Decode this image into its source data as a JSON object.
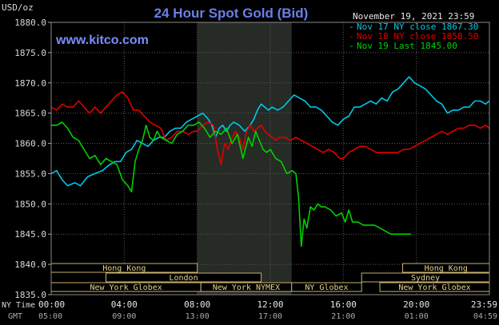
{
  "chart_data": {
    "type": "line",
    "title": "24 Hour Spot Gold (Bid)",
    "unit_label": "USD/oz",
    "watermark": "www.kitco.com",
    "date_label": "November 19, 2021 23:59",
    "ylim": [
      1835,
      1880
    ],
    "y_ticks": [
      "1880.0",
      "1875.0",
      "1870.0",
      "1865.0",
      "1860.0",
      "1855.0",
      "1850.0",
      "1845.0",
      "1840.0",
      "1835.0"
    ],
    "x_ticks": [
      "00:00",
      "04:00",
      "08:00",
      "12:00",
      "16:00",
      "20:00",
      "23:59"
    ],
    "gmt_ticks": [
      "05:00",
      "09:00",
      "13:00",
      "17:00",
      "21:00",
      "01:00",
      "04:59"
    ],
    "ny_time_label": "NY Time",
    "gmt_label": "GMT",
    "shaded_range": [
      8.0,
      13.17
    ],
    "sessions": [
      {
        "name": "Hong Kong",
        "start": 0.0,
        "end": 8.0,
        "row": 1
      },
      {
        "name": "Hong Kong",
        "start": 19.25,
        "end": 24.0,
        "row": 1
      },
      {
        "name": "London",
        "start": 3.0,
        "end": 11.5,
        "row": 2
      },
      {
        "name": "Sydney",
        "start": 17.0,
        "end": 24.0,
        "row": 2
      },
      {
        "name": "New York Globex",
        "start": 0.0,
        "end": 8.2,
        "row": 3
      },
      {
        "name": "New York NYMEX",
        "start": 8.2,
        "end": 13.17,
        "row": 3
      },
      {
        "name": "NY Globex",
        "start": 13.17,
        "end": 17.0,
        "row": 3
      },
      {
        "name": "New York Globex",
        "start": 18.0,
        "end": 24.0,
        "row": 3
      }
    ],
    "series": [
      {
        "name": "Nov 17 NY close",
        "last": "1867.30",
        "color": "#00c8e8",
        "points": [
          [
            0,
            1855
          ],
          [
            0.3,
            1855.5
          ],
          [
            0.6,
            1854
          ],
          [
            0.9,
            1853
          ],
          [
            1.3,
            1853.5
          ],
          [
            1.6,
            1853
          ],
          [
            2.0,
            1854.5
          ],
          [
            2.4,
            1855
          ],
          [
            2.8,
            1855.5
          ],
          [
            3.2,
            1856.5
          ],
          [
            3.5,
            1857
          ],
          [
            3.8,
            1857
          ],
          [
            4.1,
            1858.5
          ],
          [
            4.4,
            1859
          ],
          [
            4.7,
            1860.5
          ],
          [
            5.0,
            1860
          ],
          [
            5.3,
            1859.5
          ],
          [
            5.6,
            1860.5
          ],
          [
            5.9,
            1861
          ],
          [
            6.2,
            1861
          ],
          [
            6.5,
            1862
          ],
          [
            6.8,
            1862.5
          ],
          [
            7.1,
            1862.5
          ],
          [
            7.4,
            1863.5
          ],
          [
            7.7,
            1864
          ],
          [
            8.0,
            1864.5
          ],
          [
            8.3,
            1865
          ],
          [
            8.6,
            1864
          ],
          [
            8.8,
            1863
          ],
          [
            9.0,
            1861
          ],
          [
            9.2,
            1862.5
          ],
          [
            9.4,
            1863
          ],
          [
            9.6,
            1862
          ],
          [
            9.8,
            1863
          ],
          [
            10.0,
            1863.5
          ],
          [
            10.3,
            1863
          ],
          [
            10.6,
            1862
          ],
          [
            10.9,
            1863
          ],
          [
            11.1,
            1864
          ],
          [
            11.3,
            1865.5
          ],
          [
            11.5,
            1866.5
          ],
          [
            11.7,
            1866
          ],
          [
            11.9,
            1865.5
          ],
          [
            12.1,
            1866
          ],
          [
            12.4,
            1865.5
          ],
          [
            12.7,
            1866
          ],
          [
            13.0,
            1867
          ],
          [
            13.3,
            1868
          ],
          [
            13.6,
            1867.5
          ],
          [
            13.9,
            1867
          ],
          [
            14.2,
            1866
          ],
          [
            14.5,
            1866
          ],
          [
            14.8,
            1865.5
          ],
          [
            15.1,
            1864.5
          ],
          [
            15.4,
            1863.5
          ],
          [
            15.7,
            1863
          ],
          [
            16.0,
            1864
          ],
          [
            16.3,
            1864.5
          ],
          [
            16.6,
            1866
          ],
          [
            16.9,
            1866
          ],
          [
            17.2,
            1866.5
          ],
          [
            17.5,
            1867
          ],
          [
            17.8,
            1866.5
          ],
          [
            18.1,
            1867.5
          ],
          [
            18.4,
            1867
          ],
          [
            18.7,
            1868.5
          ],
          [
            19.0,
            1869
          ],
          [
            19.3,
            1870
          ],
          [
            19.6,
            1871
          ],
          [
            19.9,
            1870
          ],
          [
            20.2,
            1869.5
          ],
          [
            20.5,
            1869
          ],
          [
            20.8,
            1868
          ],
          [
            21.1,
            1867
          ],
          [
            21.4,
            1866.5
          ],
          [
            21.7,
            1865
          ],
          [
            22.0,
            1865.5
          ],
          [
            22.3,
            1865.5
          ],
          [
            22.6,
            1866
          ],
          [
            22.9,
            1866
          ],
          [
            23.2,
            1867
          ],
          [
            23.5,
            1867
          ],
          [
            23.8,
            1866.5
          ],
          [
            23.98,
            1867
          ]
        ]
      },
      {
        "name": "Nov 18 NY close",
        "last": "1858.50",
        "color": "#e00000",
        "points": [
          [
            0,
            1866
          ],
          [
            0.3,
            1865.5
          ],
          [
            0.6,
            1866.5
          ],
          [
            0.9,
            1866
          ],
          [
            1.2,
            1866
          ],
          [
            1.5,
            1867
          ],
          [
            1.8,
            1866
          ],
          [
            2.1,
            1865
          ],
          [
            2.4,
            1866
          ],
          [
            2.7,
            1865
          ],
          [
            3.0,
            1866
          ],
          [
            3.3,
            1867
          ],
          [
            3.6,
            1868
          ],
          [
            3.9,
            1868.5
          ],
          [
            4.2,
            1867.5
          ],
          [
            4.5,
            1865.5
          ],
          [
            4.8,
            1865.5
          ],
          [
            5.1,
            1864.5
          ],
          [
            5.4,
            1863.5
          ],
          [
            5.7,
            1863
          ],
          [
            6.0,
            1862.5
          ],
          [
            6.3,
            1860.5
          ],
          [
            6.6,
            1861
          ],
          [
            6.9,
            1862
          ],
          [
            7.2,
            1862
          ],
          [
            7.5,
            1861.5
          ],
          [
            7.8,
            1862
          ],
          [
            8.0,
            1862
          ],
          [
            8.3,
            1863
          ],
          [
            8.6,
            1863.5
          ],
          [
            8.9,
            1863
          ],
          [
            9.1,
            1859
          ],
          [
            9.3,
            1856.5
          ],
          [
            9.5,
            1860
          ],
          [
            9.7,
            1859
          ],
          [
            9.9,
            1861
          ],
          [
            10.1,
            1862
          ],
          [
            10.3,
            1861
          ],
          [
            10.5,
            1859
          ],
          [
            10.7,
            1862
          ],
          [
            10.9,
            1863
          ],
          [
            11.1,
            1862
          ],
          [
            11.3,
            1862.5
          ],
          [
            11.5,
            1863
          ],
          [
            11.7,
            1862
          ],
          [
            11.9,
            1861.5
          ],
          [
            12.1,
            1861
          ],
          [
            12.3,
            1860.5
          ],
          [
            12.5,
            1861
          ],
          [
            12.8,
            1861
          ],
          [
            13.1,
            1860.5
          ],
          [
            13.4,
            1861
          ],
          [
            13.7,
            1860.5
          ],
          [
            14.0,
            1860
          ],
          [
            14.3,
            1859.5
          ],
          [
            14.6,
            1859
          ],
          [
            14.9,
            1858.5
          ],
          [
            15.2,
            1859
          ],
          [
            15.5,
            1858.5
          ],
          [
            15.8,
            1857.5
          ],
          [
            16.0,
            1857.5
          ],
          [
            16.3,
            1858.5
          ],
          [
            16.6,
            1859
          ],
          [
            16.9,
            1859.5
          ],
          [
            17.2,
            1859.5
          ],
          [
            17.5,
            1859
          ],
          [
            17.8,
            1858.5
          ],
          [
            18.1,
            1858.5
          ],
          [
            18.4,
            1858.5
          ],
          [
            18.7,
            1858.5
          ],
          [
            19.0,
            1858.5
          ],
          [
            19.3,
            1859
          ],
          [
            19.6,
            1859
          ],
          [
            19.9,
            1859.5
          ],
          [
            20.2,
            1860
          ],
          [
            20.5,
            1860.5
          ],
          [
            20.8,
            1861
          ],
          [
            21.1,
            1861.5
          ],
          [
            21.4,
            1862
          ],
          [
            21.7,
            1861.5
          ],
          [
            22.0,
            1862
          ],
          [
            22.3,
            1862.5
          ],
          [
            22.6,
            1862.5
          ],
          [
            22.9,
            1863
          ],
          [
            23.2,
            1863
          ],
          [
            23.5,
            1862.5
          ],
          [
            23.8,
            1863
          ],
          [
            23.98,
            1862.5
          ]
        ]
      },
      {
        "name": "Nov 19 Last",
        "last": "1845.00",
        "color": "#00d000",
        "points": [
          [
            0,
            1863
          ],
          [
            0.3,
            1863
          ],
          [
            0.6,
            1863.5
          ],
          [
            0.9,
            1862.5
          ],
          [
            1.2,
            1861
          ],
          [
            1.5,
            1860.5
          ],
          [
            1.8,
            1859
          ],
          [
            2.1,
            1857.5
          ],
          [
            2.4,
            1858
          ],
          [
            2.7,
            1856.5
          ],
          [
            3.0,
            1857.5
          ],
          [
            3.3,
            1857
          ],
          [
            3.6,
            1856.5
          ],
          [
            3.9,
            1854
          ],
          [
            4.2,
            1853
          ],
          [
            4.4,
            1852
          ],
          [
            4.6,
            1857
          ],
          [
            4.8,
            1859
          ],
          [
            5.0,
            1860.5
          ],
          [
            5.2,
            1863
          ],
          [
            5.4,
            1861
          ],
          [
            5.6,
            1860.5
          ],
          [
            5.8,
            1862
          ],
          [
            6.0,
            1861
          ],
          [
            6.3,
            1860.5
          ],
          [
            6.6,
            1860
          ],
          [
            6.9,
            1861.5
          ],
          [
            7.2,
            1862
          ],
          [
            7.5,
            1863
          ],
          [
            7.8,
            1863
          ],
          [
            8.1,
            1863.5
          ],
          [
            8.4,
            1862.5
          ],
          [
            8.7,
            1861
          ],
          [
            9.0,
            1862
          ],
          [
            9.3,
            1861.5
          ],
          [
            9.6,
            1862.5
          ],
          [
            9.9,
            1860
          ],
          [
            10.2,
            1861.5
          ],
          [
            10.5,
            1857.5
          ],
          [
            10.8,
            1861
          ],
          [
            11.0,
            1859.5
          ],
          [
            11.2,
            1862
          ],
          [
            11.4,
            1860.5
          ],
          [
            11.6,
            1859
          ],
          [
            11.8,
            1858.5
          ],
          [
            12.0,
            1859
          ],
          [
            12.3,
            1857.5
          ],
          [
            12.6,
            1857
          ],
          [
            12.9,
            1855
          ],
          [
            13.2,
            1855.5
          ],
          [
            13.4,
            1855
          ],
          [
            13.55,
            1851
          ],
          [
            13.7,
            1843
          ],
          [
            13.85,
            1847.5
          ],
          [
            14.0,
            1846
          ],
          [
            14.2,
            1849.5
          ],
          [
            14.4,
            1849
          ],
          [
            14.6,
            1850
          ],
          [
            14.8,
            1849.5
          ],
          [
            15.0,
            1849.5
          ],
          [
            15.3,
            1849
          ],
          [
            15.6,
            1848
          ],
          [
            15.9,
            1848.5
          ],
          [
            16.1,
            1847
          ],
          [
            16.3,
            1849
          ],
          [
            16.5,
            1847
          ],
          [
            16.8,
            1847
          ],
          [
            17.1,
            1846.5
          ],
          [
            17.4,
            1846.5
          ],
          [
            17.7,
            1846.5
          ],
          [
            18.0,
            1846
          ],
          [
            18.3,
            1845.5
          ],
          [
            18.6,
            1845
          ],
          [
            19.0,
            1845
          ],
          [
            19.4,
            1845
          ],
          [
            19.7,
            1845
          ]
        ]
      }
    ]
  }
}
